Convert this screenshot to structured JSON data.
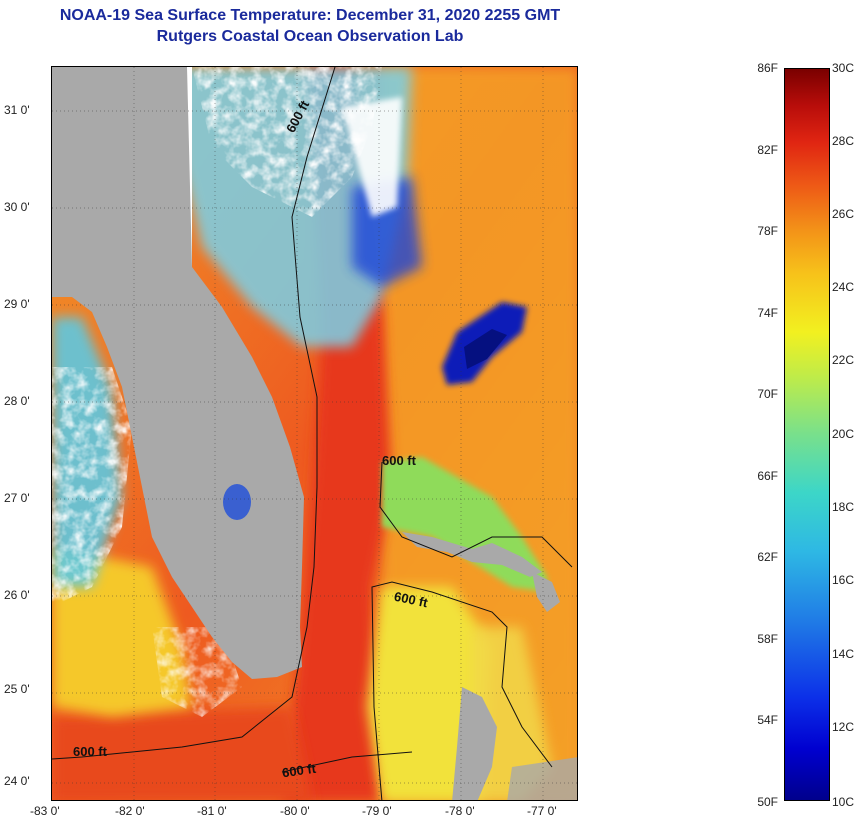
{
  "title": {
    "line1": "NOAA-19 Sea Surface Temperature:  December 31, 2020 2255 GMT",
    "line2": "Rutgers Coastal Ocean Observation Lab"
  },
  "axes": {
    "lat_labels": [
      "31 0'",
      "30 0'",
      "29 0'",
      "28 0'",
      "27 0'",
      "26 0'",
      "25 0'",
      "24 0'"
    ],
    "lon_labels": [
      "-83 0'",
      "-82 0'",
      "-81 0'",
      "-80 0'",
      "-79 0'",
      "-78 0'",
      "-77 0'"
    ]
  },
  "contours": {
    "label": "600 ft"
  },
  "colorbar": {
    "f_labels": [
      "86F",
      "82F",
      "78F",
      "74F",
      "70F",
      "66F",
      "62F",
      "58F",
      "54F",
      "50F"
    ],
    "c_labels": [
      "30C",
      "28C",
      "26C",
      "24C",
      "22C",
      "20C",
      "18C",
      "16C",
      "14C",
      "12C",
      "10C"
    ],
    "range_f": [
      50,
      86
    ],
    "range_c": [
      10,
      30
    ]
  },
  "colors": {
    "land": "#a9a9a9",
    "cloud": "#ffffff",
    "title": "#1a2a9c"
  }
}
